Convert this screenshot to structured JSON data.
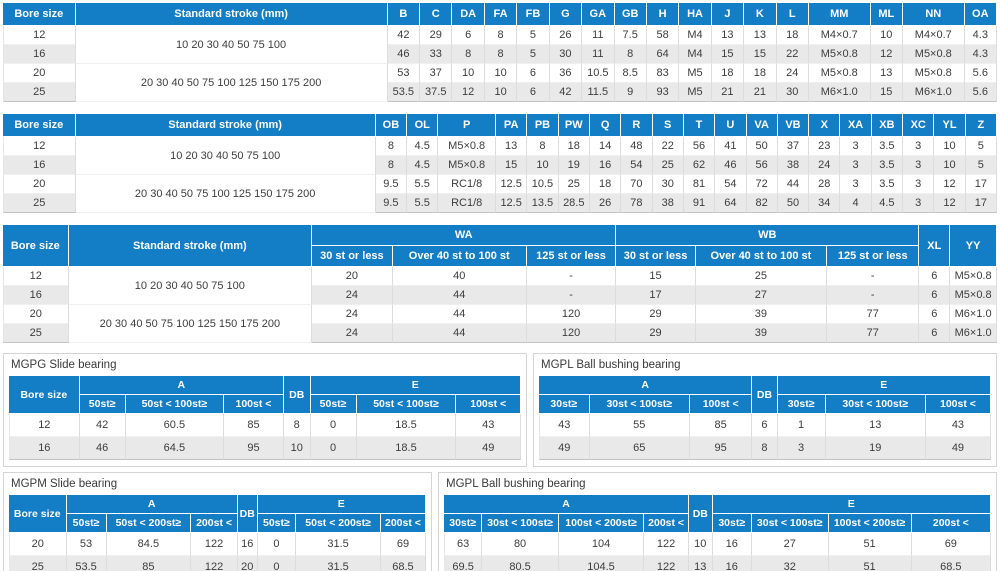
{
  "colors": {
    "header_blue": "#137dc5",
    "row_alt": "#e9e9e9",
    "grid_line": "#dcdcdc",
    "table_bottom": "#c3c3c3",
    "text_dark": "#3d3d3d",
    "box_border": "#d4d4d4"
  },
  "tables": {
    "basic": {
      "header": [
        [
          "Bore size",
          "Standard stroke (mm)",
          "B",
          "C",
          "DA",
          "FA",
          "FB",
          "G",
          "GA",
          "GB",
          "H",
          "HA",
          "J",
          "K",
          "L",
          "MM",
          "ML",
          "NN",
          "OA"
        ]
      ],
      "rows": [
        [
          "12",
          {
            "t": "10 20 30 40 50 75 100",
            "r": 2
          },
          "42",
          "29",
          "6",
          "8",
          "5",
          "26",
          "11",
          "7.5",
          "58",
          "M4",
          "13",
          "13",
          "18",
          "M4×0.7",
          "10",
          "M4×0.7",
          "4.3"
        ],
        [
          "16",
          "46",
          "33",
          "8",
          "8",
          "5",
          "30",
          "11",
          "8",
          "64",
          "M4",
          "15",
          "15",
          "22",
          "M5×0.8",
          "12",
          "M5×0.8",
          "4.3"
        ],
        [
          "20",
          {
            "t": "20 30 40 50 75 100 125 150 175 200",
            "r": 2
          },
          "53",
          "37",
          "10",
          "10",
          "6",
          "36",
          "10.5",
          "8.5",
          "83",
          "M5",
          "18",
          "18",
          "24",
          "M5×0.8",
          "13",
          "M5×0.8",
          "5.6"
        ],
        [
          "25",
          "53.5",
          "37.5",
          "12",
          "10",
          "6",
          "42",
          "11.5",
          "9",
          "93",
          "M5",
          "21",
          "21",
          "30",
          "M6×1.0",
          "15",
          "M6×1.0",
          "5.6"
        ]
      ]
    },
    "ports": {
      "header": [
        [
          "Bore size",
          "Standard stroke (mm)",
          "OB",
          "OL",
          "P",
          "PA",
          "PB",
          "PW",
          "Q",
          "R",
          "S",
          "T",
          "U",
          "VA",
          "VB",
          "X",
          "XA",
          "XB",
          "XC",
          "YL",
          "Z"
        ]
      ],
      "rows": [
        [
          "12",
          {
            "t": "10 20 30 40 50 75 100",
            "r": 2
          },
          "8",
          "4.5",
          "M5×0.8",
          "13",
          "8",
          "18",
          "14",
          "48",
          "22",
          "56",
          "41",
          "50",
          "37",
          "23",
          "3",
          "3.5",
          "3",
          "10",
          "5"
        ],
        [
          "16",
          "8",
          "4.5",
          "M5×0.8",
          "15",
          "10",
          "19",
          "16",
          "54",
          "25",
          "62",
          "46",
          "56",
          "38",
          "24",
          "3",
          "3.5",
          "3",
          "10",
          "5"
        ],
        [
          "20",
          {
            "t": "20 30 40 50 75 100 125 150 175 200",
            "r": 2
          },
          "9.5",
          "5.5",
          "RC1/8",
          "12.5",
          "10.5",
          "25",
          "18",
          "70",
          "30",
          "81",
          "54",
          "72",
          "44",
          "28",
          "3",
          "3.5",
          "3",
          "12",
          "17"
        ],
        [
          "25",
          "9.5",
          "5.5",
          "RC1/8",
          "12.5",
          "13.5",
          "28.5",
          "26",
          "78",
          "38",
          "91",
          "64",
          "82",
          "50",
          "34",
          "4",
          "4.5",
          "3",
          "12",
          "17"
        ]
      ]
    },
    "wa_wb": {
      "header": [
        [
          {
            "t": "Bore size",
            "r": 2
          },
          {
            "t": "Standard stroke (mm)",
            "r": 2
          },
          {
            "t": "WA",
            "c": 3
          },
          {
            "t": "WB",
            "c": 3
          },
          {
            "t": "XL",
            "r": 2
          },
          {
            "t": "YY",
            "r": 2
          }
        ],
        [
          "30 st or less",
          "Over 40 st to 100 st",
          "125 st or less",
          "30 st or less",
          "Over 40 st to 100 st",
          "125 st or less"
        ]
      ],
      "rows": [
        [
          "12",
          {
            "t": "10 20 30 40 50 75 100",
            "r": 2
          },
          "20",
          "40",
          "-",
          "15",
          "25",
          "-",
          "6",
          "M5×0.8"
        ],
        [
          "16",
          "24",
          "44",
          "-",
          "17",
          "27",
          "-",
          "6",
          "M5×0.8"
        ],
        [
          "20",
          {
            "t": "20 30 40 50 75 100 125 150 175 200",
            "r": 2
          },
          "24",
          "44",
          "120",
          "29",
          "39",
          "77",
          "6",
          "M6×1.0"
        ],
        [
          "25",
          "24",
          "44",
          "120",
          "29",
          "39",
          "77",
          "6",
          "M6×1.0"
        ]
      ]
    }
  },
  "sections": {
    "mgpg": {
      "title": "MGPG Slide bearing",
      "table": {
        "header": [
          [
            {
              "t": "Bore size",
              "r": 2
            },
            {
              "t": "A",
              "c": 3
            },
            {
              "t": "DB",
              "r": 2
            },
            {
              "t": "E",
              "c": 3
            }
          ],
          [
            "50st≥",
            "50st < 100st≥",
            "100st <",
            "50st≥",
            "50st < 100st≥",
            "100st <"
          ]
        ],
        "rows": [
          [
            "12",
            "42",
            "60.5",
            "85",
            "8",
            "0",
            "18.5",
            "43"
          ],
          [
            "16",
            "46",
            "64.5",
            "95",
            "10",
            "0",
            "18.5",
            "49"
          ]
        ]
      }
    },
    "mgpl_front": {
      "title": "MGPL Ball bushing bearing",
      "table": {
        "header": [
          [
            {
              "t": "A",
              "c": 3
            },
            {
              "t": "DB",
              "r": 2
            },
            {
              "t": "E",
              "c": 3
            }
          ],
          [
            "30st≥",
            "30st < 100st≥",
            "100st <",
            "30st≥",
            "30st < 100st≥",
            "100st <"
          ]
        ],
        "rows": [
          [
            "43",
            "55",
            "85",
            "6",
            "1",
            "13",
            "43"
          ],
          [
            "49",
            "65",
            "95",
            "8",
            "3",
            "19",
            "49"
          ]
        ]
      }
    },
    "mgpm": {
      "title": "MGPM Slide bearing",
      "table": {
        "header": [
          [
            {
              "t": "Bore size",
              "r": 2
            },
            {
              "t": "A",
              "c": 3
            },
            {
              "t": "DB",
              "r": 2
            },
            {
              "t": "E",
              "c": 3
            }
          ],
          [
            "50st≥",
            "50st < 200st≥",
            "200st <",
            "50st≥",
            "50st < 200st≥",
            "200st <"
          ]
        ],
        "rows": [
          [
            "20",
            "53",
            "84.5",
            "122",
            "16",
            "0",
            "31.5",
            "69"
          ],
          [
            "25",
            "53.5",
            "85",
            "122",
            "20",
            "0",
            "31.5",
            "68.5"
          ]
        ]
      }
    },
    "mgpl_compact": {
      "title": "MGPL Ball bushing bearing",
      "table": {
        "header": [
          [
            {
              "t": "A",
              "c": 4
            },
            {
              "t": "DB",
              "r": 2
            },
            {
              "t": "E",
              "c": 4
            }
          ],
          [
            "30st≥",
            "30st < 100st≥",
            "100st < 200st≥",
            "200st <",
            "30st≥",
            "30st < 100st≥",
            "100st < 200st≥",
            "200st <"
          ]
        ],
        "rows": [
          [
            "63",
            "80",
            "104",
            "122",
            "10",
            "16",
            "27",
            "51",
            "69"
          ],
          [
            "69.5",
            "80.5",
            "104.5",
            "122",
            "13",
            "16",
            "32",
            "51",
            "68.5"
          ]
        ]
      }
    }
  }
}
